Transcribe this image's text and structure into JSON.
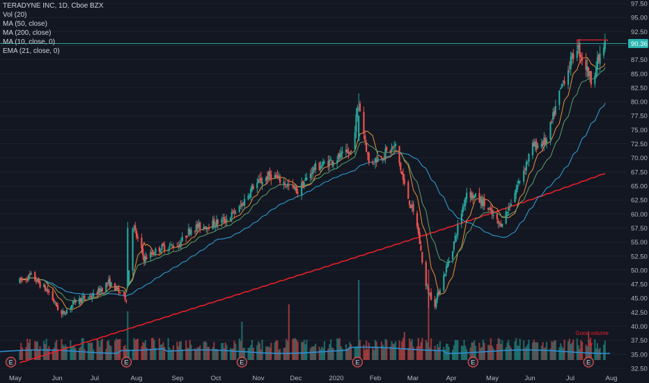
{
  "legend": {
    "symbol": "TERADYNE INC, 1D, Cboe BZX",
    "vol": "Vol (20)",
    "ma50": "MA (50, close)",
    "ma200": "MA (200, close)",
    "ma10": "MA (10, close, 0)",
    "ema21": "EMA (21, close, 0)"
  },
  "colors": {
    "background": "#131722",
    "up": "#26a69a",
    "down": "#ef5350",
    "ma200": "#e8202a",
    "ma50": "#2e9bcf",
    "ma10": "#f0923a",
    "ema21": "#5fa36a",
    "vol_avg": "#2e8fd6",
    "last_price_line": "#2bb5b0",
    "annotation": "#e8202a",
    "grid": "#1e2230",
    "axis_text": "#b2b5be"
  },
  "chart_data": {
    "type": "candlestick",
    "title": "TERADYNE INC, 1D, Cboe BZX",
    "y_axis": {
      "position": "right",
      "ticks": [
        "97.50",
        "95.00",
        "92.50",
        "90.00",
        "87.50",
        "85.00",
        "82.50",
        "80.00",
        "77.50",
        "75.00",
        "72.50",
        "70.00",
        "67.50",
        "65.00",
        "62.50",
        "60.00",
        "57.50",
        "55.00",
        "52.50",
        "50.00",
        "47.50",
        "45.00",
        "42.50",
        "40.00",
        "37.50",
        "35.00",
        "32.50"
      ],
      "range": [
        32.5,
        97.5
      ]
    },
    "x_axis": {
      "ticks": [
        "May",
        "Jun",
        "Jul",
        "Aug",
        "Sep",
        "Oct",
        "Nov",
        "Dec",
        "2020",
        "Feb",
        "Mar",
        "Apr",
        "May",
        "Jun",
        "Jul",
        "Aug"
      ]
    },
    "last_price": "90.36",
    "price_path": [
      {
        "date": "2019-05-01",
        "close": 48.0
      },
      {
        "date": "2019-05-10",
        "close": 49.0
      },
      {
        "date": "2019-05-24",
        "close": 46.0
      },
      {
        "date": "2019-06-03",
        "close": 42.0
      },
      {
        "date": "2019-06-14",
        "close": 44.5
      },
      {
        "date": "2019-06-28",
        "close": 45.5
      },
      {
        "date": "2019-07-10",
        "close": 47.8
      },
      {
        "date": "2019-07-24",
        "close": 45.0
      },
      {
        "date": "2019-07-29",
        "close": 58.0
      },
      {
        "date": "2019-08-07",
        "close": 52.0
      },
      {
        "date": "2019-08-20",
        "close": 54.0
      },
      {
        "date": "2019-09-03",
        "close": 54.5
      },
      {
        "date": "2019-09-13",
        "close": 57.5
      },
      {
        "date": "2019-09-27",
        "close": 58.0
      },
      {
        "date": "2019-10-10",
        "close": 59.0
      },
      {
        "date": "2019-10-21",
        "close": 61.0
      },
      {
        "date": "2019-11-01",
        "close": 65.0
      },
      {
        "date": "2019-11-15",
        "close": 67.0
      },
      {
        "date": "2019-11-29",
        "close": 65.0
      },
      {
        "date": "2019-12-06",
        "close": 64.0
      },
      {
        "date": "2019-12-18",
        "close": 68.0
      },
      {
        "date": "2020-01-06",
        "close": 70.0
      },
      {
        "date": "2020-01-17",
        "close": 71.0
      },
      {
        "date": "2020-01-23",
        "close": 80.0
      },
      {
        "date": "2020-01-31",
        "close": 69.0
      },
      {
        "date": "2020-02-14",
        "close": 71.0
      },
      {
        "date": "2020-02-21",
        "close": 72.0
      },
      {
        "date": "2020-02-28",
        "close": 65.0
      },
      {
        "date": "2020-03-09",
        "close": 58.0
      },
      {
        "date": "2020-03-16",
        "close": 47.0
      },
      {
        "date": "2020-03-23",
        "close": 44.0
      },
      {
        "date": "2020-04-06",
        "close": 54.0
      },
      {
        "date": "2020-04-17",
        "close": 64.0
      },
      {
        "date": "2020-04-30",
        "close": 62.0
      },
      {
        "date": "2020-05-13",
        "close": 58.0
      },
      {
        "date": "2020-05-20",
        "close": 61.0
      },
      {
        "date": "2020-06-08",
        "close": 72.0
      },
      {
        "date": "2020-06-19",
        "close": 73.0
      },
      {
        "date": "2020-07-01",
        "close": 83.0
      },
      {
        "date": "2020-07-13",
        "close": 90.0
      },
      {
        "date": "2020-07-24",
        "close": 84.0
      },
      {
        "date": "2020-08-04",
        "close": 90.36
      }
    ],
    "moving_averages": [
      {
        "name": "MA (200, close)",
        "start": 33.5,
        "end": 67.5
      },
      {
        "name": "MA (50, close)",
        "start": 43.0,
        "end": 80.5
      }
    ],
    "resistance_level": 91.0,
    "earnings_markers": [
      {
        "date": "2019-04-24",
        "label": "E"
      },
      {
        "date": "2019-07-24",
        "label": "E"
      },
      {
        "date": "2019-10-23",
        "label": "E"
      },
      {
        "date": "2020-01-22",
        "label": "E"
      },
      {
        "date": "2020-04-22",
        "label": "E"
      },
      {
        "date": "2020-07-22",
        "label": "E"
      }
    ],
    "annotations": [
      {
        "text": "Good volume"
      }
    ]
  }
}
